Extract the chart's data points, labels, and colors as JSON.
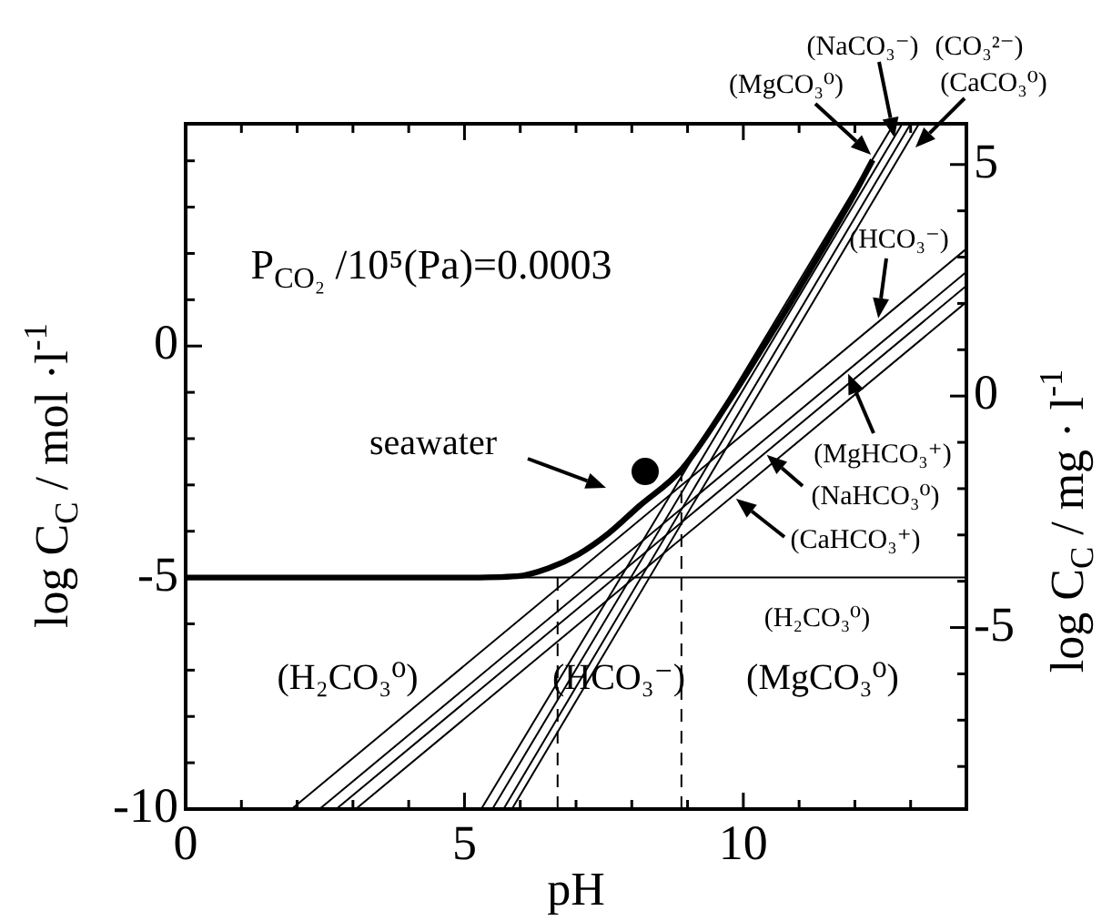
{
  "chart_data": {
    "type": "line",
    "xlabel": "pH",
    "ylabel": "log C$_{C}$ / mol ·l$^{-1}$",
    "y2label": "log C$_{C}$ / mg · l$^{-1}$",
    "xlim": [
      0,
      14
    ],
    "ylim": [
      -10,
      4.8
    ],
    "y2lim": [
      -8.92,
      5.88
    ],
    "xticks": [
      0,
      {
        "value": 1,
        "label": null
      },
      {
        "value": 2,
        "label": null
      },
      {
        "value": 3,
        "label": null
      },
      {
        "value": 4,
        "label": null
      },
      5,
      {
        "value": 6,
        "label": null
      },
      {
        "value": 7,
        "label": null
      },
      {
        "value": 8,
        "label": null
      },
      {
        "value": 9,
        "label": null
      },
      10,
      {
        "value": 11,
        "label": null
      },
      {
        "value": 12,
        "label": null
      },
      {
        "value": 13,
        "label": null
      },
      {
        "value": 14,
        "label": null
      }
    ],
    "yticks": [
      -10,
      {
        "value": -9,
        "label": null
      },
      {
        "value": -8,
        "label": null
      },
      {
        "value": -7,
        "label": null
      },
      {
        "value": -6,
        "label": null
      },
      -5,
      {
        "value": -4,
        "label": null
      },
      {
        "value": -3,
        "label": null
      },
      {
        "value": -2,
        "label": null
      },
      {
        "value": -1,
        "label": null
      },
      0,
      {
        "value": 1,
        "label": null
      },
      {
        "value": 2,
        "label": null
      },
      {
        "value": 3,
        "label": null
      },
      {
        "value": 4,
        "label": null
      }
    ],
    "y2ticks": [
      {
        "value": -8,
        "label": null
      },
      {
        "value": -7,
        "label": null
      },
      {
        "value": -6,
        "label": null
      },
      -5,
      {
        "value": -4,
        "label": null
      },
      {
        "value": -3,
        "label": null
      },
      {
        "value": -2,
        "label": null
      },
      {
        "value": -1,
        "label": null
      },
      0,
      {
        "value": 1,
        "label": null
      },
      {
        "value": 2,
        "label": null
      },
      {
        "value": 3,
        "label": null
      },
      {
        "value": 4,
        "label": null
      },
      5
    ],
    "grid": false,
    "legend": false,
    "line_style": "solid",
    "series": [
      {
        "color": "#000000",
        "x": [
          0,
          4.86,
          5.95,
          6.5,
          7.04,
          7.58,
          8.13,
          8.89,
          9.76,
          10.31,
          10.85,
          11.4,
          11.94,
          12.32
        ],
        "values": [
          -5,
          -5,
          -4.97,
          -4.8,
          -4.5,
          -4.05,
          -3.46,
          -2.67,
          -1.16,
          -0.11,
          0.94,
          2.05,
          3.17,
          4.02
        ]
      },
      {
        "color": "#000000",
        "x": [
          0,
          14
        ],
        "values": [
          -5,
          -5
        ]
      },
      {
        "color": "#000000",
        "x": [
          1.9,
          14
        ],
        "values": [
          -10,
          2.1
        ]
      },
      {
        "color": "#000000",
        "x": [
          2.4,
          14
        ],
        "values": [
          -10,
          1.6
        ]
      },
      {
        "color": "#000000",
        "x": [
          2.7,
          14
        ],
        "values": [
          -10,
          1.3
        ]
      },
      {
        "color": "#000000",
        "x": [
          3.05,
          14
        ],
        "values": [
          -10,
          0.95
        ]
      },
      {
        "color": "#000000",
        "x": [
          5.3,
          12.7
        ],
        "values": [
          -10,
          4.8
        ]
      },
      {
        "color": "#000000",
        "x": [
          5.5,
          12.85
        ],
        "values": [
          -10,
          4.8
        ]
      },
      {
        "color": "#000000",
        "x": [
          5.7,
          13
        ],
        "values": [
          -10,
          4.8
        ]
      },
      {
        "color": "#000000",
        "x": [
          5.85,
          13.15
        ],
        "values": [
          -10,
          4.8
        ]
      },
      {
        "color": "#000000",
        "x": [
          6.67,
          6.67
        ],
        "values": [
          -10,
          -5
        ],
        "line_style": "dashed"
      },
      {
        "color": "#000000",
        "x": [
          8.89,
          8.89
        ],
        "values": [
          -10,
          -2.67
        ],
        "line_style": "dashed"
      },
      {
        "type": "scatter",
        "color": "#000000",
        "x": [
          8.24
        ],
        "values": [
          -2.71
        ],
        "marker": "circle"
      }
    ],
    "annotations": [
      "P$_{CO₂}$ /10⁵(Pa)=0.0003",
      "seawater",
      {
        "text": "(MgCO₃⁰)",
        "x": 12.29,
        "y": 4.13
      },
      {
        "text": "(NaCO₃⁻)",
        "x": 12.71,
        "y": 4.5
      },
      "(CO₃²⁻)",
      "(CaCO₃⁰)",
      {
        "text": "(HCO₃⁻)",
        "x": 12.42,
        "y": 0.6
      },
      {
        "text": "(MgHCO₃⁺)",
        "x": 11.88,
        "y": -0.6
      },
      {
        "text": "(NaHCO₃⁰)",
        "x": 10.42,
        "y": -2.35
      },
      {
        "text": "(CaHCO₃⁺)",
        "x": 9.87,
        "y": -3.3
      },
      "(H₂CO₃⁰)",
      "(HCO₃⁻)",
      "(MgCO₃⁰)",
      "(H₂CO₃⁰)"
    ]
  }
}
